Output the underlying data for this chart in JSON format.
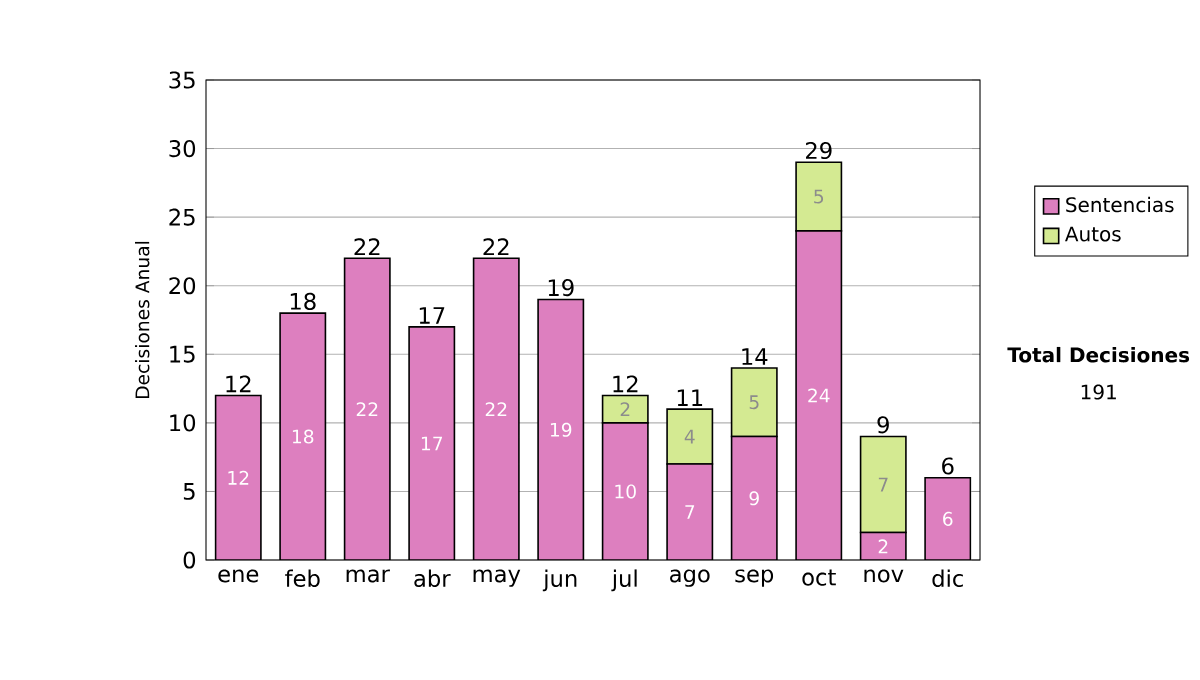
{
  "chart_data": {
    "type": "bar",
    "stacked": true,
    "categories": [
      "ene",
      "feb",
      "mar",
      "abr",
      "may",
      "jun",
      "jul",
      "ago",
      "sep",
      "oct",
      "nov",
      "dic"
    ],
    "series": [
      {
        "name": "Sentencias",
        "color": "#dd7fbf",
        "values": [
          12,
          18,
          22,
          17,
          22,
          19,
          10,
          7,
          9,
          24,
          2,
          6
        ]
      },
      {
        "name": "Autos",
        "color": "#d4ea92",
        "values": [
          null,
          null,
          null,
          null,
          null,
          null,
          2,
          4,
          5,
          5,
          7,
          null
        ]
      }
    ],
    "totals": [
      "12",
      "18",
      "22",
      "17",
      "22",
      "19",
      "12",
      "11",
      "14",
      "29",
      "9",
      "6"
    ],
    "data_labels": true,
    "ylabel": "Decisiones Anual",
    "ylim": [
      0,
      35
    ],
    "yticks": [
      0,
      5,
      10,
      15,
      20,
      25,
      30,
      35
    ],
    "grid": "y",
    "legend": "right",
    "annotations": [
      "Total Decisiones",
      "191"
    ]
  }
}
